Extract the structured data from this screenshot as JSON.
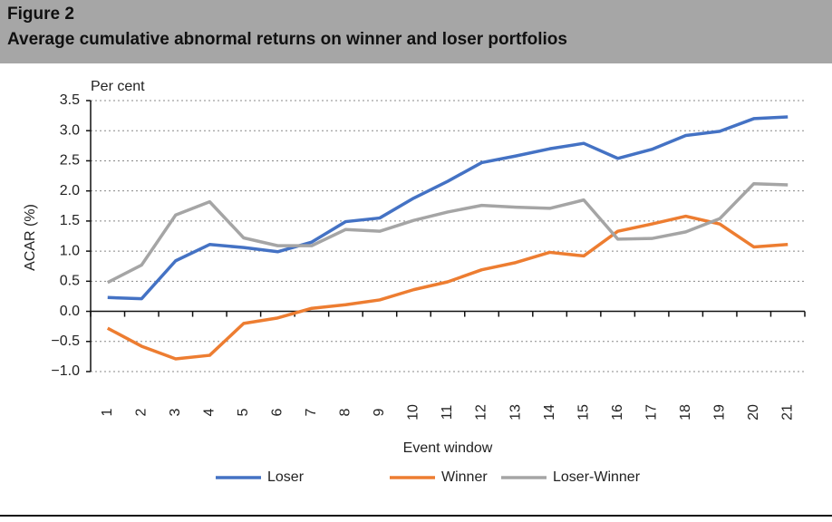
{
  "header": {
    "figure": "Figure 2",
    "title": "Average cumulative abnormal returns on winner and loser portfolios"
  },
  "chart_data": {
    "type": "line",
    "y_unit": "Per cent",
    "y_label": "ACAR (%)",
    "x_label": "Event window",
    "categories": [
      "1",
      "2",
      "3",
      "4",
      "5",
      "6",
      "7",
      "8",
      "9",
      "10",
      "11",
      "12",
      "13",
      "14",
      "15",
      "16",
      "17",
      "18",
      "19",
      "20",
      "21"
    ],
    "ylim": [
      -1.0,
      3.5
    ],
    "yticks": [
      {
        "value": 3.5,
        "label": "3.5"
      },
      {
        "value": 3.0,
        "label": "3.0"
      },
      {
        "value": 2.5,
        "label": "2.5"
      },
      {
        "value": 2.0,
        "label": "2.0"
      },
      {
        "value": 1.5,
        "label": "1.5"
      },
      {
        "value": 1.0,
        "label": "1.0"
      },
      {
        "value": 0.5,
        "label": "0.5"
      },
      {
        "value": 0.0,
        "label": "0.0"
      },
      {
        "value": -0.5,
        "label": "−0.5"
      },
      {
        "value": -1.0,
        "label": "−1.0"
      }
    ],
    "grid": true,
    "series": [
      {
        "name": "Loser",
        "color": "#4472c4",
        "values": [
          0.23,
          0.21,
          0.84,
          1.11,
          1.06,
          0.99,
          1.15,
          1.49,
          1.55,
          1.88,
          2.16,
          2.47,
          2.58,
          2.7,
          2.79,
          2.54,
          2.69,
          2.92,
          2.99,
          3.2,
          3.23
        ]
      },
      {
        "name": "Winner",
        "color": "#ed7d31",
        "values": [
          -0.28,
          -0.58,
          -0.79,
          -0.73,
          -0.2,
          -0.11,
          0.05,
          0.11,
          0.19,
          0.36,
          0.49,
          0.69,
          0.81,
          0.98,
          0.92,
          1.33,
          1.45,
          1.58,
          1.45,
          1.07,
          1.11
        ]
      },
      {
        "name": "Loser-Winner",
        "color": "#a5a5a5",
        "values": [
          0.48,
          0.77,
          1.6,
          1.82,
          1.22,
          1.09,
          1.09,
          1.36,
          1.33,
          1.51,
          1.65,
          1.76,
          1.73,
          1.71,
          1.85,
          1.2,
          1.21,
          1.32,
          1.54,
          2.12,
          2.1
        ]
      }
    ]
  }
}
